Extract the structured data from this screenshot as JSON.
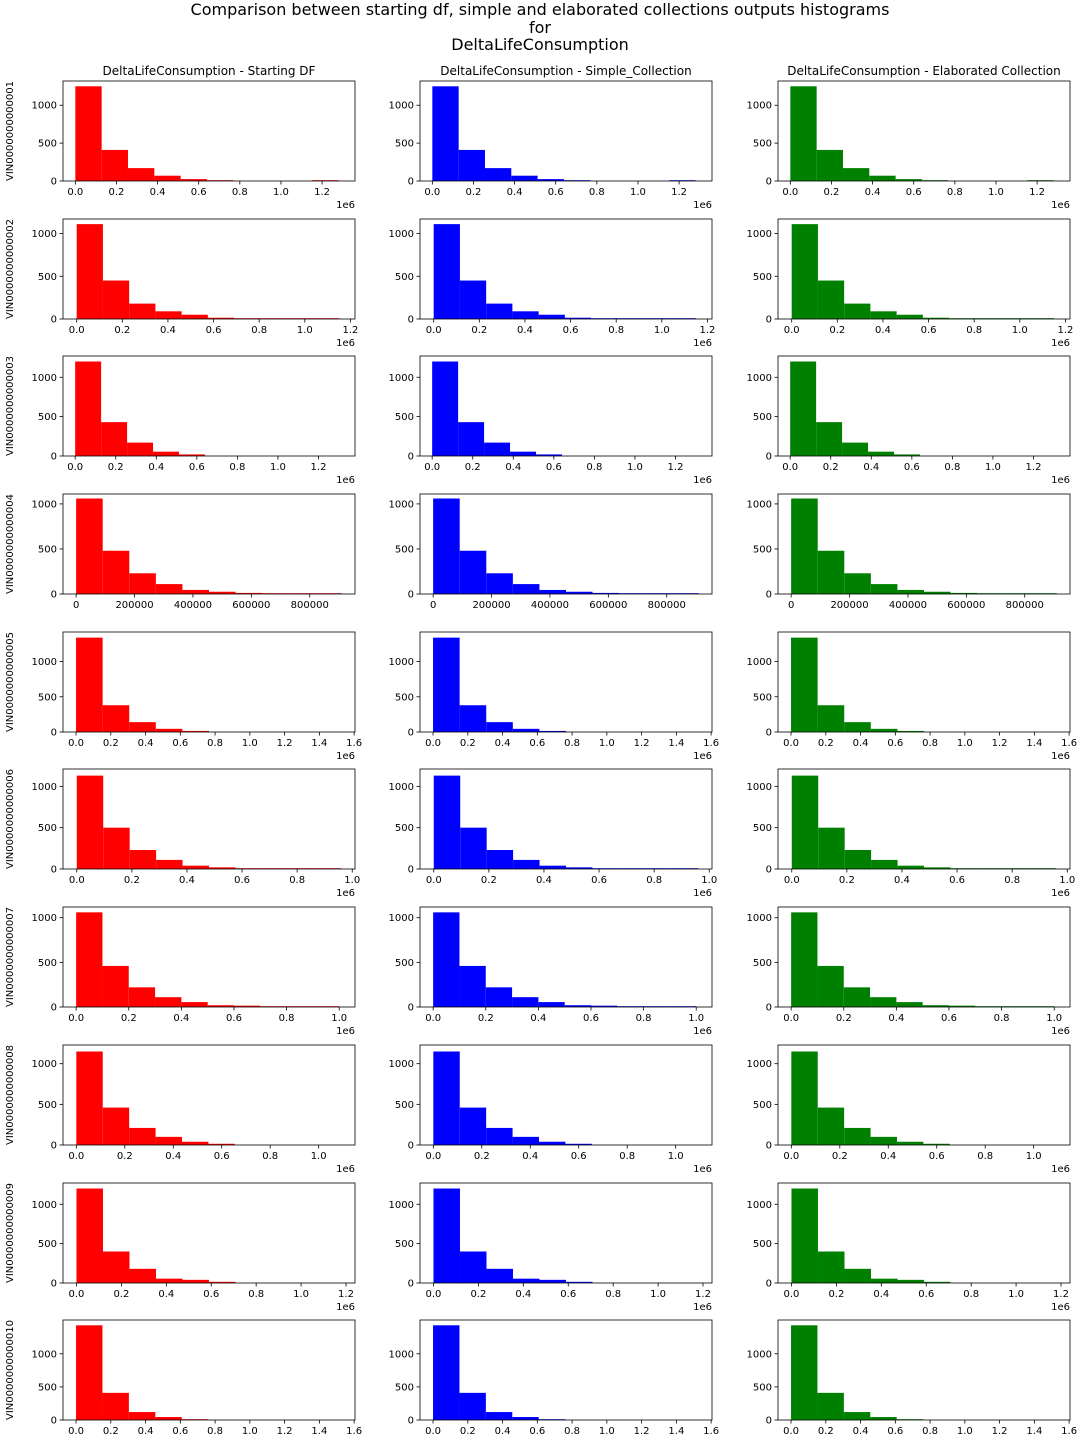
{
  "figure": {
    "suptitle_lines": [
      "Comparison between starting df, simple and elaborated collections outputs histograms",
      "for",
      "DeltaLifeConsumption"
    ],
    "column_titles": [
      "DeltaLifeConsumption - Starting DF",
      "DeltaLifeConsumption - Simple_Collection",
      "DeltaLifeConsumption - Elaborated Collection"
    ],
    "column_colors": [
      "#ff0000",
      "#0000ff",
      "#008000"
    ]
  },
  "chart_data": {
    "type": "bar",
    "description_of_layout": "10 rows (vehicles) x 3 columns (collections); each column shows the same histogram per row",
    "rows": [
      {
        "ylabel": "VIN0000000000001",
        "xlim": [
          -60000,
          1360000
        ],
        "ylim": [
          0,
          1320
        ],
        "xticks": [
          0,
          200000,
          400000,
          600000,
          800000,
          1000000,
          1200000
        ],
        "xtick_labels": [
          "0.0",
          "0.2",
          "0.4",
          "0.6",
          "0.8",
          "1.0",
          "1.2"
        ],
        "offset_text": "1e6",
        "yticks": [
          0,
          500,
          1000
        ],
        "ytick_labels": [
          "0",
          "500",
          "1000"
        ],
        "bin_start": 0,
        "bin_width": 128000,
        "counts": [
          1250,
          410,
          170,
          70,
          25,
          10,
          0,
          0,
          0,
          2
        ]
      },
      {
        "ylabel": "VIN0000000000002",
        "xlim": [
          -60000,
          1220000
        ],
        "ylim": [
          0,
          1170
        ],
        "xticks": [
          0,
          200000,
          400000,
          600000,
          800000,
          1000000,
          1200000
        ],
        "xtick_labels": [
          "0.0",
          "0.2",
          "0.4",
          "0.6",
          "0.8",
          "1.0",
          "1.2"
        ],
        "offset_text": "1e6",
        "yticks": [
          0,
          500,
          1000
        ],
        "ytick_labels": [
          "0",
          "500",
          "1000"
        ],
        "bin_start": 0,
        "bin_width": 115000,
        "counts": [
          1110,
          450,
          180,
          90,
          50,
          15,
          6,
          3,
          2,
          1
        ]
      },
      {
        "ylabel": "VIN0000000000003",
        "xlim": [
          -60000,
          1380000
        ],
        "ylim": [
          0,
          1270
        ],
        "xticks": [
          0,
          200000,
          400000,
          600000,
          800000,
          1000000,
          1200000
        ],
        "xtick_labels": [
          "0.0",
          "0.2",
          "0.4",
          "0.6",
          "0.8",
          "1.0",
          "1.2"
        ],
        "offset_text": "1e6",
        "yticks": [
          0,
          500,
          1000
        ],
        "ytick_labels": [
          "0",
          "500",
          "1000"
        ],
        "bin_start": 0,
        "bin_width": 128000,
        "counts": [
          1200,
          430,
          170,
          55,
          20,
          0,
          0,
          0,
          0,
          0
        ]
      },
      {
        "ylabel": "VIN0000000000004",
        "xlim": [
          -45000,
          955000
        ],
        "ylim": [
          0,
          1110
        ],
        "xticks": [
          0,
          200000,
          400000,
          600000,
          800000
        ],
        "xtick_labels": [
          "0",
          "200000",
          "400000",
          "600000",
          "800000"
        ],
        "offset_text": "",
        "yticks": [
          0,
          500,
          1000
        ],
        "ytick_labels": [
          "0",
          "500",
          "1000"
        ],
        "bin_start": 0,
        "bin_width": 91000,
        "counts": [
          1060,
          480,
          230,
          110,
          45,
          25,
          12,
          6,
          2,
          1
        ]
      },
      {
        "ylabel": "VIN0000000000005",
        "xlim": [
          -75000,
          1605000
        ],
        "ylim": [
          0,
          1420
        ],
        "xticks": [
          0,
          200000,
          400000,
          600000,
          800000,
          1000000,
          1200000,
          1400000,
          1600000
        ],
        "xtick_labels": [
          "0.0",
          "0.2",
          "0.4",
          "0.6",
          "0.8",
          "1.0",
          "1.2",
          "1.4",
          "1.6"
        ],
        "offset_text": "1e6",
        "yticks": [
          0,
          500,
          1000
        ],
        "ytick_labels": [
          "0",
          "500",
          "1000"
        ],
        "bin_start": 0,
        "bin_width": 153000,
        "counts": [
          1340,
          380,
          140,
          45,
          15,
          0,
          0,
          0,
          0,
          0
        ]
      },
      {
        "ylabel": "VIN0000000000006",
        "xlim": [
          -50000,
          1010000
        ],
        "ylim": [
          0,
          1210
        ],
        "xticks": [
          0,
          200000,
          400000,
          600000,
          800000,
          1000000
        ],
        "xtick_labels": [
          "0.0",
          "0.2",
          "0.4",
          "0.6",
          "0.8",
          "1.0"
        ],
        "offset_text": "1e6",
        "yticks": [
          0,
          500,
          1000
        ],
        "ytick_labels": [
          "0",
          "500",
          "1000"
        ],
        "bin_start": 0,
        "bin_width": 96000,
        "counts": [
          1130,
          500,
          230,
          110,
          40,
          20,
          6,
          4,
          3,
          2
        ]
      },
      {
        "ylabel": "VIN0000000000007",
        "xlim": [
          -50000,
          1060000
        ],
        "ylim": [
          0,
          1120
        ],
        "xticks": [
          0,
          200000,
          400000,
          600000,
          800000,
          1000000
        ],
        "xtick_labels": [
          "0.0",
          "0.2",
          "0.4",
          "0.6",
          "0.8",
          "1.0"
        ],
        "offset_text": "1e6",
        "yticks": [
          0,
          500,
          1000
        ],
        "ytick_labels": [
          "0",
          "500",
          "1000"
        ],
        "bin_start": 0,
        "bin_width": 100000,
        "counts": [
          1060,
          460,
          220,
          110,
          55,
          20,
          15,
          8,
          5,
          3
        ]
      },
      {
        "ylabel": "VIN0000000000008",
        "xlim": [
          -55000,
          1150000
        ],
        "ylim": [
          0,
          1230
        ],
        "xticks": [
          0,
          200000,
          400000,
          600000,
          800000,
          1000000
        ],
        "xtick_labels": [
          "0.0",
          "0.2",
          "0.4",
          "0.6",
          "0.8",
          "1.0"
        ],
        "offset_text": "1e6",
        "yticks": [
          0,
          500,
          1000
        ],
        "ytick_labels": [
          "0",
          "500",
          "1000"
        ],
        "bin_start": 0,
        "bin_width": 109000,
        "counts": [
          1150,
          460,
          210,
          100,
          40,
          15,
          0,
          0,
          0,
          0
        ]
      },
      {
        "ylabel": "VIN0000000000009",
        "xlim": [
          -60000,
          1240000
        ],
        "ylim": [
          0,
          1270
        ],
        "xticks": [
          0,
          200000,
          400000,
          600000,
          800000,
          1000000,
          1200000
        ],
        "xtick_labels": [
          "0.0",
          "0.2",
          "0.4",
          "0.6",
          "0.8",
          "1.0",
          "1.2"
        ],
        "offset_text": "1e6",
        "yticks": [
          0,
          500,
          1000
        ],
        "ytick_labels": [
          "0",
          "500",
          "1000"
        ],
        "bin_start": 0,
        "bin_width": 118000,
        "counts": [
          1200,
          400,
          180,
          55,
          40,
          15,
          0,
          0,
          0,
          0
        ]
      },
      {
        "ylabel": "VIN0000000000010",
        "xlim": [
          -75000,
          1605000
        ],
        "ylim": [
          0,
          1510
        ],
        "xticks": [
          0,
          200000,
          400000,
          600000,
          800000,
          1000000,
          1200000,
          1400000,
          1600000
        ],
        "xtick_labels": [
          "0.0",
          "0.2",
          "0.4",
          "0.6",
          "0.8",
          "1.0",
          "1.2",
          "1.4",
          "1.6"
        ],
        "offset_text": "1e6",
        "yticks": [
          0,
          500,
          1000
        ],
        "ytick_labels": [
          "0",
          "500",
          "1000"
        ],
        "bin_start": 0,
        "bin_width": 152000,
        "counts": [
          1430,
          410,
          120,
          45,
          10,
          0,
          0,
          0,
          0,
          0
        ]
      }
    ]
  }
}
